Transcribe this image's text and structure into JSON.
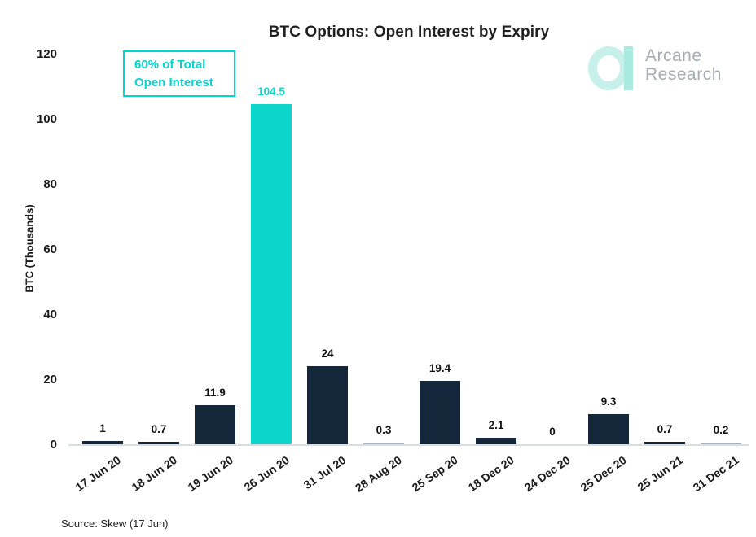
{
  "title": "BTC Options: Open Interest by Expiry",
  "annotation": {
    "line1": "60% of Total",
    "line2": "Open Interest"
  },
  "logo": {
    "name": "arcane-research",
    "line1": "Arcane",
    "line2": "Research"
  },
  "source": "Source: Skew (17 Jun)",
  "colors": {
    "bar_navy": "#142639",
    "bar_teal": "#0cd6cc",
    "tiny_bar_gray": "#a9b4bf",
    "annotation_cyan": "#00d5d0",
    "axis_line": "#d9dee3",
    "label_dark": "#111111",
    "logo_ring_mint": "#c8f0ea",
    "logo_bar_mint": "#a9e9e0",
    "logo_text_gray": "#a6adb2"
  },
  "chart_data": {
    "type": "bar",
    "title": "BTC Options: Open Interest by Expiry",
    "xlabel": "",
    "ylabel": "BTC (Thousands)",
    "categories": [
      "17 Jun 20",
      "18 Jun 20",
      "19 Jun 20",
      "26 Jun 20",
      "31 Jul 20",
      "28 Aug 20",
      "25 Sep 20",
      "18 Dec 20",
      "24 Dec 20",
      "25 Dec 20",
      "25 Jun 21",
      "31 Dec 21"
    ],
    "values": [
      1,
      0.7,
      11.9,
      104.5,
      24,
      0.3,
      19.4,
      2.1,
      0,
      9.3,
      0.7,
      0.2
    ],
    "highlight_index": 3,
    "highlight_note": "60% of Total Open Interest",
    "ylim": [
      0,
      120
    ],
    "yticks": [
      0,
      20,
      40,
      60,
      80,
      100,
      120
    ],
    "grid": false,
    "legend": false,
    "value_labels": true,
    "source": "Source: Skew (17 Jun)"
  }
}
